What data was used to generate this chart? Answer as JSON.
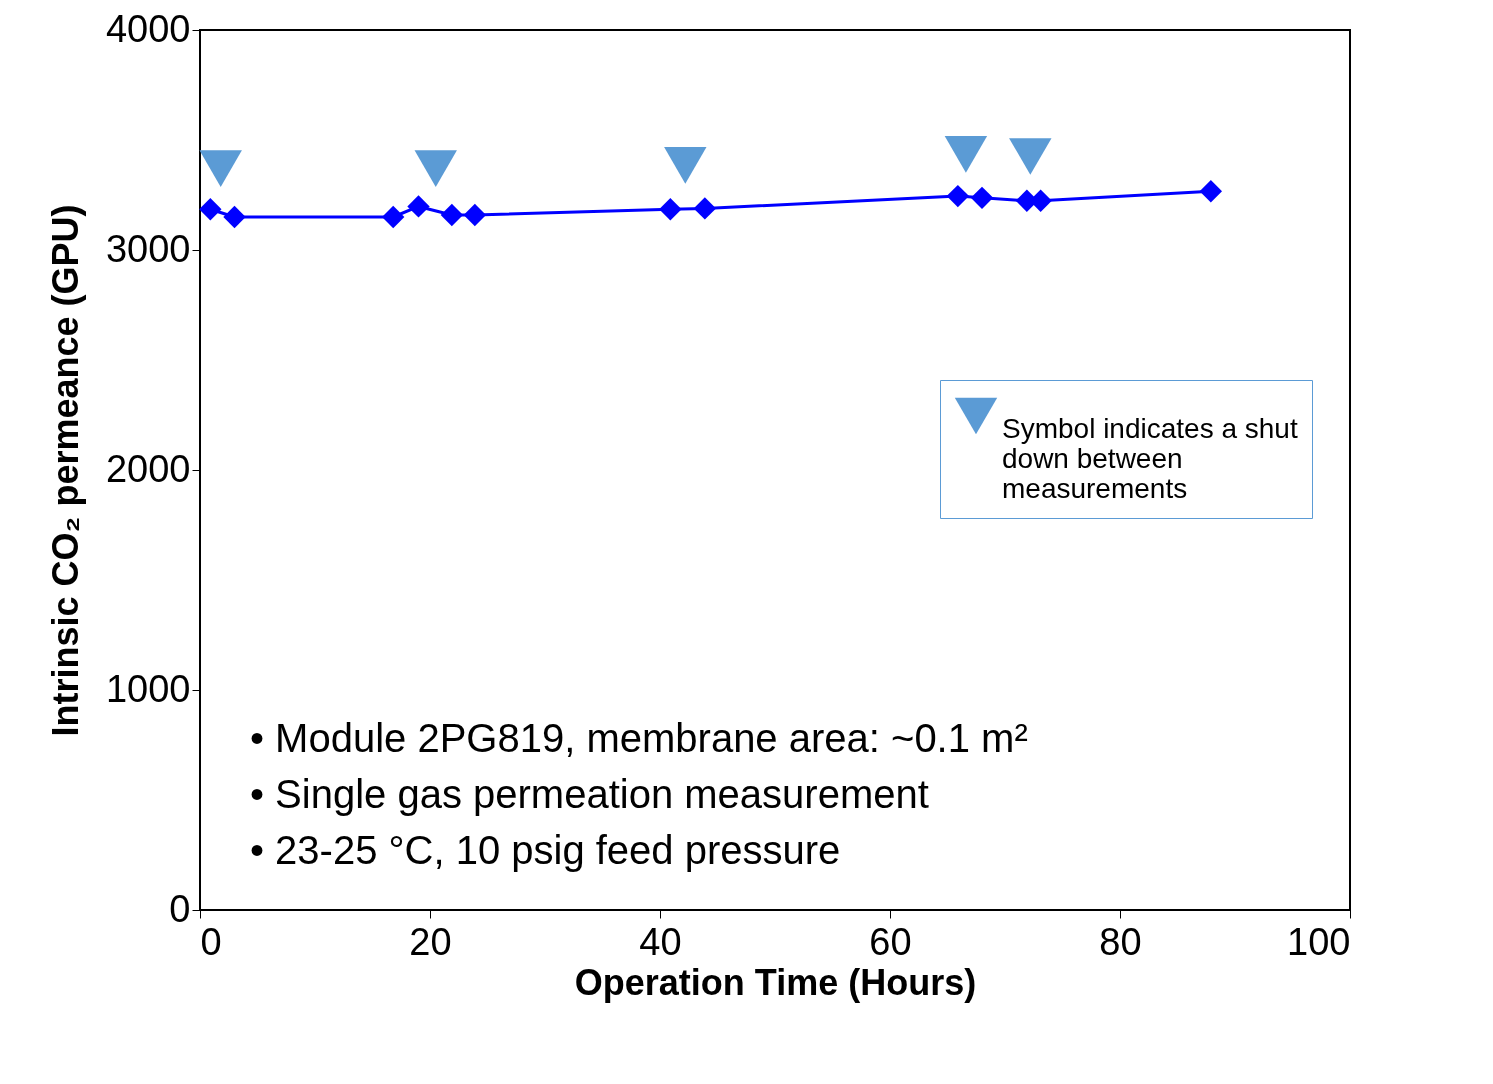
{
  "chart_data": {
    "type": "line",
    "xlabel": "Operation Time (Hours)",
    "ylabel": "Intrinsic CO₂ permeance (GPU)",
    "xlim": [
      0,
      100
    ],
    "xticks": [
      0,
      20,
      40,
      60,
      80,
      100
    ],
    "ylim": [
      0,
      4000
    ],
    "yticks": [
      0,
      1000,
      2000,
      3000,
      4000
    ],
    "grid": false,
    "legend": "right",
    "series": [
      {
        "type": "line",
        "marker": "diamond",
        "color": "#0000ff",
        "x": [
          0.9,
          3.0,
          16.8,
          19.0,
          21.9,
          23.9,
          40.9,
          43.9,
          65.9,
          68.0,
          71.9,
          73.1,
          87.9
        ],
        "values": [
          3185,
          3150,
          3150,
          3198,
          3159,
          3159,
          3185,
          3189,
          3245,
          3237,
          3224,
          3224,
          3267
        ]
      },
      {
        "type": "scatter",
        "marker": "triangle",
        "name": "Symbol indicates a shut down between measurements",
        "color": "#5b9bd5",
        "x": [
          1.8,
          20.5,
          42.2,
          66.6,
          72.2
        ],
        "values": [
          3370,
          3370,
          3385,
          3435,
          3425
        ]
      }
    ],
    "annotations": [
      "•   Module 2PG819, membrane area: ~0.1 m²",
      "•   Single gas permeation measurement",
      "•   23-25 °C, 10 psig feed pressure"
    ]
  }
}
